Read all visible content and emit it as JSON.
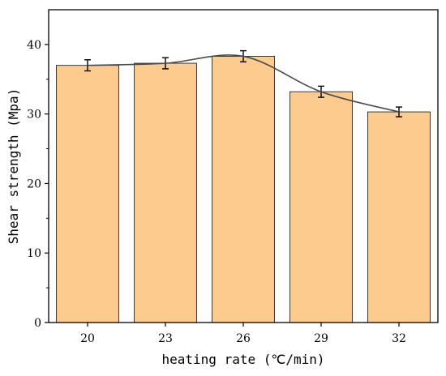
{
  "chart_data": {
    "type": "bar",
    "categories": [
      "20",
      "23",
      "26",
      "29",
      "32"
    ],
    "values": [
      37.0,
      37.3,
      38.3,
      33.2,
      30.3
    ],
    "errors": [
      0.8,
      0.8,
      0.8,
      0.8,
      0.7
    ],
    "trend_line": "smooth curve through bar tops",
    "xlabel": "heating rate (℃/min)",
    "ylabel": "Shear strength (Mpa)",
    "ylim": [
      0,
      45
    ],
    "yticks": [
      0,
      10,
      20,
      30,
      40
    ],
    "grid": false,
    "colors": {
      "bar_fill": "#FDCB8E",
      "bar_stroke": "#3a3a3a",
      "line": "#4a4a4a",
      "axis": "#000000"
    }
  }
}
